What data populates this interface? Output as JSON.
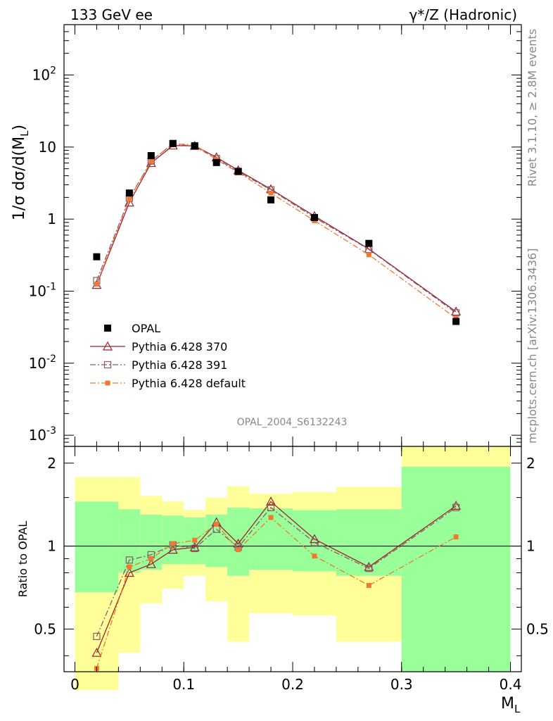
{
  "header": {
    "left": "133 GeV ee",
    "right": "γ*/Z (Hadronic)"
  },
  "side_labels": {
    "rivet": "Rivet 3.1.10, ≥ 2.8M events",
    "mcplots": "mcplots.cern.ch [arXiv:1306.3436]"
  },
  "watermark": "OPAL_2004_S6132243",
  "colors": {
    "opal": "#000000",
    "p370": "#a0202e",
    "p391": "#8a5a6a",
    "pdef": "#f07830",
    "green_band": "#99ff99",
    "yellow_band": "#ffff99"
  },
  "chart_data": [
    {
      "type": "scatter",
      "panel": "main",
      "ylabel": "1/σ dσ/d(M_L)",
      "yscale": "log",
      "ylim": [
        0.0007,
        500
      ],
      "xlim": [
        -0.01,
        0.41
      ],
      "y_tick_labels": [
        "10^-3",
        "10^-2",
        "10^-1",
        "1",
        "10",
        "10^2"
      ],
      "legend_position": "lower-left",
      "x": [
        0.02,
        0.05,
        0.07,
        0.09,
        0.11,
        0.13,
        0.15,
        0.18,
        0.22,
        0.27,
        0.35
      ],
      "series": [
        {
          "name": "OPAL",
          "key": "opal",
          "marker": "filled-square",
          "values": [
            0.3,
            2.3,
            7.6,
            11.2,
            10.4,
            6.1,
            4.6,
            1.85,
            1.05,
            0.46,
            0.038
          ]
        },
        {
          "name": "Pythia 6.428 370",
          "key": "p370",
          "marker": "open-triangle",
          "line": "solid",
          "values": [
            0.122,
            1.7,
            6.0,
            10.5,
            10.4,
            7.2,
            4.75,
            2.6,
            1.1,
            0.385,
            0.052
          ]
        },
        {
          "name": "Pythia 6.428 391",
          "key": "p391",
          "marker": "open-square",
          "line": "dash-dot",
          "values": [
            0.14,
            1.95,
            6.4,
            11.2,
            10.2,
            6.9,
            4.55,
            2.55,
            1.05,
            0.38,
            0.05
          ]
        },
        {
          "name": "Pythia 6.428 default",
          "key": "pdef",
          "marker": "small-filled-square",
          "line": "dash-dot",
          "values": [
            0.125,
            1.9,
            6.35,
            11.1,
            10.7,
            6.7,
            4.45,
            2.3,
            0.95,
            0.32,
            0.042
          ]
        }
      ]
    },
    {
      "type": "scatter",
      "panel": "ratio",
      "xlabel": "M_L",
      "ylabel": "Ratio to OPAL",
      "ylim": [
        0.35,
        2.3
      ],
      "xlim": [
        -0.01,
        0.41
      ],
      "y_ticks": [
        0.5,
        1,
        2
      ],
      "y_tick_labels": [
        "0.5",
        "1",
        "2"
      ],
      "x_ticks": [
        0,
        0.1,
        0.2,
        0.3,
        0.4
      ],
      "x_tick_labels": [
        "0",
        "0.1",
        "0.2",
        "0.3",
        "0.4"
      ],
      "reference_line": 1,
      "bands": [
        {
          "x0": 0.0,
          "x1": 0.04,
          "green": [
            0.68,
            1.45
          ],
          "yellow": [
            0.3,
            1.78
          ]
        },
        {
          "x0": 0.04,
          "x1": 0.06,
          "green": [
            0.8,
            1.36
          ],
          "yellow": [
            0.41,
            1.78
          ]
        },
        {
          "x0": 0.06,
          "x1": 0.08,
          "green": [
            0.82,
            1.3
          ],
          "yellow": [
            0.62,
            1.52
          ]
        },
        {
          "x0": 0.08,
          "x1": 0.1,
          "green": [
            0.86,
            1.29
          ],
          "yellow": [
            0.7,
            1.45
          ]
        },
        {
          "x0": 0.1,
          "x1": 0.12,
          "green": [
            0.86,
            1.27
          ],
          "yellow": [
            0.78,
            1.35
          ]
        },
        {
          "x0": 0.12,
          "x1": 0.14,
          "green": [
            0.84,
            1.3
          ],
          "yellow": [
            0.63,
            1.5
          ]
        },
        {
          "x0": 0.14,
          "x1": 0.16,
          "green": [
            0.78,
            1.38
          ],
          "yellow": [
            0.45,
            1.65
          ]
        },
        {
          "x0": 0.16,
          "x1": 0.2,
          "green": [
            0.82,
            1.37
          ],
          "yellow": [
            0.57,
            1.55
          ]
        },
        {
          "x0": 0.2,
          "x1": 0.24,
          "green": [
            0.81,
            1.35
          ],
          "yellow": [
            0.56,
            1.57
          ]
        },
        {
          "x0": 0.24,
          "x1": 0.3,
          "green": [
            0.78,
            1.36
          ],
          "yellow": [
            0.45,
            1.64
          ]
        },
        {
          "x0": 0.3,
          "x1": 0.4,
          "green": [
            0.35,
            1.94
          ],
          "yellow": [
            0.35,
            2.3
          ]
        }
      ],
      "x": [
        0.02,
        0.05,
        0.07,
        0.09,
        0.11,
        0.13,
        0.15,
        0.18,
        0.22,
        0.27,
        0.35
      ],
      "series": [
        {
          "name": "Pythia 6.428 370",
          "key": "p370",
          "marker": "open-triangle",
          "line": "solid",
          "values": [
            0.41,
            0.8,
            0.86,
            0.97,
            0.99,
            1.22,
            1.02,
            1.45,
            1.06,
            0.84,
            1.4
          ]
        },
        {
          "name": "Pythia 6.428 391",
          "key": "p391",
          "marker": "open-square",
          "line": "dash-dot",
          "values": [
            0.47,
            0.89,
            0.93,
            1.01,
            0.98,
            1.15,
            0.99,
            1.38,
            1.03,
            0.83,
            1.38
          ]
        },
        {
          "name": "Pythia 6.428 default",
          "key": "pdef",
          "marker": "small-filled-square",
          "line": "dash-dot",
          "values": [
            0.36,
            0.84,
            0.9,
            1.02,
            1.05,
            1.2,
            0.97,
            1.27,
            0.92,
            0.72,
            1.08
          ]
        }
      ]
    }
  ]
}
